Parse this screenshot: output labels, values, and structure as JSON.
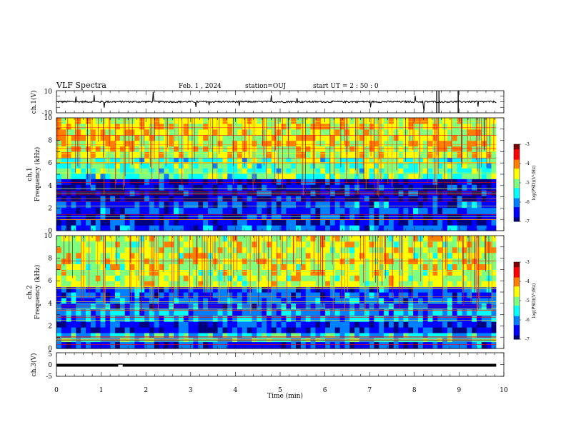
{
  "header": {
    "title": "VLF Spectra",
    "date": "Feb. 1 , 2024",
    "station": "station=OUJ",
    "start": "start UT =  2 : 50 : 0"
  },
  "chart_data": [
    {
      "type": "line",
      "panel": "ch1-waveform",
      "ylabel": "ch.1(V)",
      "ylim": [
        -10,
        10
      ],
      "yticks": [
        "10",
        "-10"
      ],
      "xlim": [
        0,
        10
      ],
      "series": [
        {
          "baseline": 0,
          "noise_band": [
            -1,
            1
          ],
          "spike_range": [
            -10,
            10
          ]
        }
      ]
    },
    {
      "type": "heatmap",
      "panel": "ch1-spectrogram",
      "ylabel": "ch.1\nFrequency  (kHz)",
      "ylim": [
        0,
        10
      ],
      "yticks": [
        "0",
        "2",
        "4",
        "6",
        "8",
        "10"
      ],
      "xlim": [
        0,
        10
      ],
      "data_end_min": 9.83,
      "colorbar": {
        "range": [
          -7,
          -3
        ],
        "ticks": [
          "-3",
          "-4",
          "-5",
          "-6",
          "-7"
        ],
        "label": "log(PSD)(V²/Hz)"
      },
      "bands_khz": [
        {
          "range": [
            0,
            0.5
          ],
          "level": -6.2
        },
        {
          "range": [
            0.5,
            1.5
          ],
          "level": -6.6
        },
        {
          "range": [
            1.5,
            2.6
          ],
          "level": -6.3
        },
        {
          "range": [
            2.6,
            4.6
          ],
          "level": -6.7
        },
        {
          "range": [
            4.6,
            6.5
          ],
          "level": -5.2
        },
        {
          "range": [
            6.5,
            10
          ],
          "level": -4.6
        }
      ]
    },
    {
      "type": "heatmap",
      "panel": "ch2-spectrogram",
      "ylabel": "ch.2\nFrequency  (kHz)",
      "ylim": [
        0,
        10
      ],
      "yticks": [
        "0",
        "2",
        "4",
        "6",
        "8",
        "10"
      ],
      "xlim": [
        0,
        10
      ],
      "data_end_min": 9.83,
      "colorbar": {
        "range": [
          -7,
          -3
        ],
        "ticks": [
          "-3",
          "-4",
          "-5",
          "-6",
          "-7"
        ],
        "label": "log(PSD)(V²/Hz)"
      },
      "bands_khz": [
        {
          "range": [
            0,
            0.6
          ],
          "level": -6.3
        },
        {
          "range": [
            0.6,
            1.4
          ],
          "level": -5.6
        },
        {
          "range": [
            1.4,
            2.4
          ],
          "level": -6.5
        },
        {
          "range": [
            2.4,
            3.5
          ],
          "level": -5.9
        },
        {
          "range": [
            3.5,
            5.5
          ],
          "level": -6.2
        },
        {
          "range": [
            5.5,
            10
          ],
          "level": -4.7
        }
      ]
    },
    {
      "type": "line",
      "panel": "ch3-waveform",
      "ylabel": "ch.3(V)",
      "ylim": [
        -5,
        5
      ],
      "yticks": [
        "5",
        "0",
        "-5"
      ],
      "xlim": [
        0,
        10
      ],
      "series": [
        {
          "level": -0.3,
          "gap_min": [
            1.38,
            1.48
          ]
        }
      ]
    }
  ],
  "xaxis": {
    "label": "Time  (min)",
    "ticks": [
      "0",
      "1",
      "2",
      "3",
      "4",
      "5",
      "6",
      "7",
      "8",
      "9",
      "10"
    ]
  },
  "colors": {
    "jet": [
      "#00007f",
      "#0000ff",
      "#007fff",
      "#00ffff",
      "#7fff7f",
      "#ffff00",
      "#ff7f00",
      "#ff0000",
      "#7f0000"
    ]
  }
}
